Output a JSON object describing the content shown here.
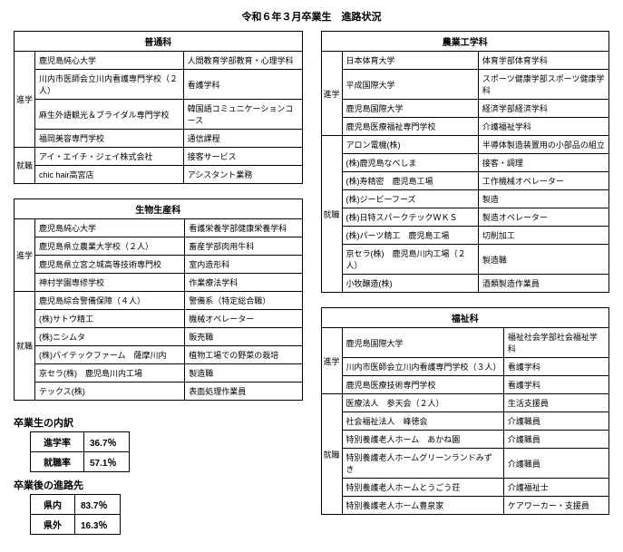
{
  "title": "令和６年３月卒業生　進路状況",
  "leftTables": [
    {
      "header": "普通科",
      "groups": [
        {
          "label": "進学",
          "rows": [
            [
              "鹿児島純心大学",
              "人間教育学部教育・心理学科"
            ],
            [
              "川内市医師会立川内看護専門学校（２人）",
              "看護学科"
            ],
            [
              "麻生外語観光＆ブライダル専門学校",
              "韓国語コミュニケーションコース"
            ],
            [
              "福岡美容専門学校",
              "通信課程"
            ]
          ]
        },
        {
          "label": "就職",
          "rows": [
            [
              "アイ・エイチ・ジェイ株式会社",
              "接客サービス"
            ],
            [
              "chic hair高宮店",
              "アシスタント業務"
            ]
          ]
        }
      ]
    },
    {
      "header": "生物生産科",
      "groups": [
        {
          "label": "進学",
          "rows": [
            [
              "鹿児島純心大学",
              "看護栄養学部健康栄養学科"
            ],
            [
              "鹿児島県立農業大学校（２人）",
              "畜産学部肉用牛科"
            ],
            [
              "鹿児島県立宮之城高等技術専門校",
              "室内造形科"
            ],
            [
              "神村学園専修学校",
              "作業療法学科"
            ]
          ]
        },
        {
          "label": "就職",
          "rows": [
            [
              "鹿児島綜合警備保障（４人）",
              "警備系（特定総合職）"
            ],
            [
              "(株)サトウ精工",
              "機械オペレーター"
            ],
            [
              "(株)ニシムタ",
              "販売職"
            ],
            [
              "(株)バイテックファーム　薩摩川内",
              "植物工場での野菜の栽培"
            ],
            [
              "京セラ(株)　鹿児島川内工場",
              "製造職"
            ],
            [
              "テックス(株)",
              "表面処理作業員"
            ]
          ]
        }
      ]
    }
  ],
  "rightTables": [
    {
      "header": "農業工学科",
      "groups": [
        {
          "label": "進学",
          "rows": [
            [
              "日本体育大学",
              "体育学部体育学科"
            ],
            [
              "平成国際大学",
              "スポーツ健康学部スポーツ健康学科"
            ],
            [
              "鹿児島国際大学",
              "経済学部経済学科"
            ],
            [
              "鹿児島医療福祉専門学校",
              "介護福祉学科"
            ]
          ]
        },
        {
          "label": "就職",
          "rows": [
            [
              "アロン電機(株)",
              "半導体製造装置用の小部品の組立"
            ],
            [
              "(株)鹿児島なべしま",
              "接客・調理"
            ],
            [
              "(株)寿精密　鹿児島工場",
              "工作機械オペレーター"
            ],
            [
              "(株)ジービーフーズ",
              "製造"
            ],
            [
              "(株)日特スパークテックＷＫＳ",
              "製造オペレーター"
            ],
            [
              "(株)パーツ精工　鹿児島工場",
              "切削加工"
            ],
            [
              "京セラ(株)　鹿児島川内工場（２人）",
              "製造職"
            ],
            [
              "小牧醸造(株)",
              "酒類製造作業員"
            ]
          ]
        }
      ]
    },
    {
      "header": "福祉科",
      "groups": [
        {
          "label": "進学",
          "rows": [
            [
              "鹿児島国際大学",
              "福祉社会学部社会福祉学科"
            ],
            [
              "川内市医師会立川内看護専門学校（３人）",
              "看護学科"
            ],
            [
              "鹿児島医療技術専門学校",
              "看護学科"
            ]
          ]
        },
        {
          "label": "就職",
          "rows": [
            [
              "医療法人　参天会（２人）",
              "生活支援員"
            ],
            [
              "社会福祉法人　峰徳会",
              "介護職員"
            ],
            [
              "特別養護老人ホーム　あかね園",
              "介護職員"
            ],
            [
              "特別養護老人ホームグリーンランドみずき",
              "介護職員"
            ],
            [
              "特別養護老人ホームとうごう荘",
              "介護福祉士"
            ],
            [
              "特別養護老人ホーム豊泉家",
              "ケアワーカー・支援員"
            ]
          ]
        }
      ]
    }
  ],
  "summary": {
    "breakdownTitle": "卒業生の内訳",
    "breakdown": [
      {
        "label": "進学率",
        "value": "36.7％"
      },
      {
        "label": "就職率",
        "value": "57.1％"
      }
    ],
    "destTitle": "卒業後の進路先",
    "dest": [
      {
        "label": "県内",
        "value": "83.7％"
      },
      {
        "label": "県外",
        "value": "16.3％"
      }
    ]
  }
}
